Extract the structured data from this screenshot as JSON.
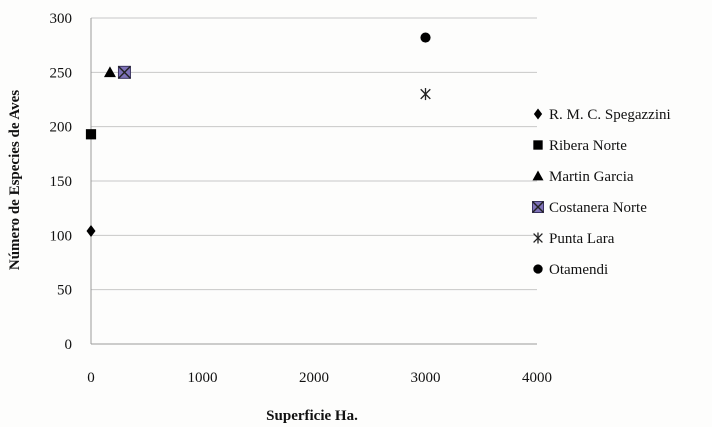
{
  "chart_data": {
    "type": "scatter",
    "title": "",
    "xlabel": "Superficie Ha.",
    "ylabel": "Número de Especies de Aves",
    "xlim": [
      0,
      4000
    ],
    "ylim": [
      0,
      300
    ],
    "xticks": [
      0,
      1000,
      2000,
      3000,
      4000
    ],
    "yticks": [
      0,
      50,
      100,
      150,
      200,
      250,
      300
    ],
    "grid": "horizontal",
    "legend_position": "right",
    "series": [
      {
        "name": "R. M. C. Spegazzini",
        "marker": "diamond",
        "color": "#000000",
        "points": [
          {
            "x": 0,
            "y": 104
          }
        ]
      },
      {
        "name": "Ribera Norte",
        "marker": "square",
        "color": "#000000",
        "points": [
          {
            "x": 0,
            "y": 193
          }
        ]
      },
      {
        "name": "Martin Garcia",
        "marker": "triangle",
        "color": "#000000",
        "points": [
          {
            "x": 170,
            "y": 250
          }
        ]
      },
      {
        "name": "Costanera Norte",
        "marker": "x-square",
        "color": "#7e72b8",
        "points": [
          {
            "x": 300,
            "y": 250
          }
        ]
      },
      {
        "name": "Punta Lara",
        "marker": "asterisk",
        "color": "#222222",
        "points": [
          {
            "x": 3000,
            "y": 230
          }
        ]
      },
      {
        "name": "Otamendi",
        "marker": "circle",
        "color": "#000000",
        "points": [
          {
            "x": 3000,
            "y": 282
          }
        ]
      }
    ]
  }
}
